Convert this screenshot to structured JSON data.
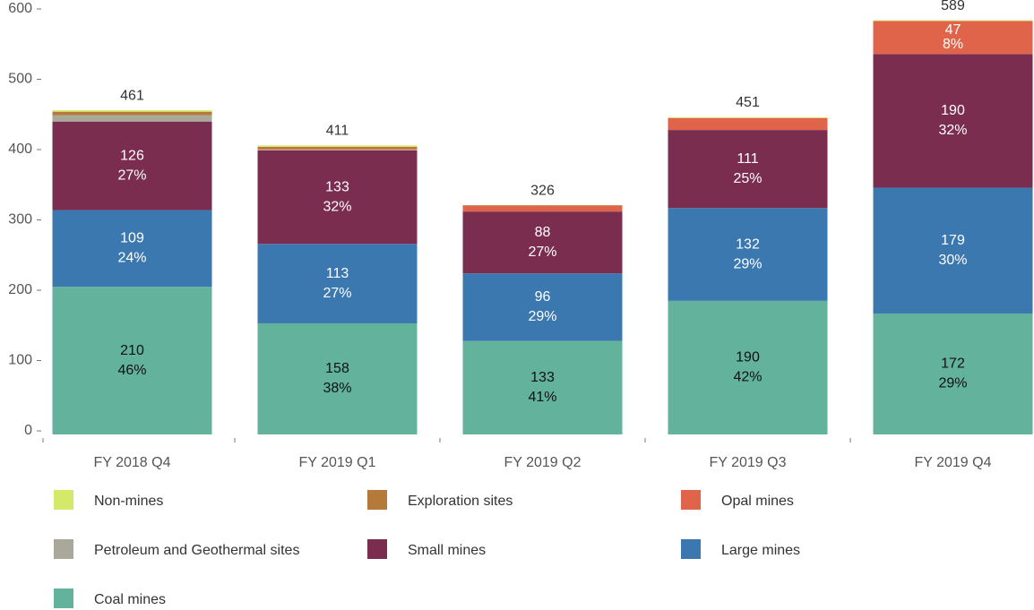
{
  "chart_data": {
    "type": "stacked_bar",
    "categories": [
      "FY 2018 Q4",
      "FY 2019 Q1",
      "FY 2019 Q2",
      "FY 2019 Q3",
      "FY 2019 Q4"
    ],
    "series": [
      {
        "name": "Non-mines",
        "color": "#d4e96a",
        "values": [
          2,
          2,
          0,
          1,
          1
        ]
      },
      {
        "name": "Exploration sites",
        "color": "#b5793a",
        "values": [
          5,
          3,
          1,
          0,
          0
        ]
      },
      {
        "name": "Opal mines",
        "color": "#e0644a",
        "values": [
          0,
          1,
          8,
          17,
          47
        ],
        "percent_labels": [
          null,
          null,
          null,
          null,
          "8%"
        ]
      },
      {
        "name": "Petroleum and Geothermal sites",
        "color": "#a9a89a",
        "values": [
          9,
          1,
          0,
          0,
          0
        ]
      },
      {
        "name": "Small mines",
        "color": "#7b2d4f",
        "values": [
          126,
          133,
          88,
          111,
          190
        ],
        "percent_labels": [
          "27%",
          "32%",
          "27%",
          "25%",
          "32%"
        ]
      },
      {
        "name": "Large mines",
        "color": "#3b78b0",
        "values": [
          109,
          113,
          96,
          132,
          179
        ],
        "percent_labels": [
          "24%",
          "27%",
          "29%",
          "29%",
          "30%"
        ]
      },
      {
        "name": "Coal mines",
        "color": "#62b29c",
        "values": [
          210,
          158,
          133,
          190,
          172
        ],
        "percent_labels": [
          "46%",
          "38%",
          "41%",
          "42%",
          "29%"
        ]
      }
    ],
    "totals": [
      461,
      411,
      326,
      451,
      589
    ],
    "ylim": [
      0,
      600
    ],
    "yticks": [
      0,
      100,
      200,
      300,
      400,
      500,
      600
    ]
  }
}
